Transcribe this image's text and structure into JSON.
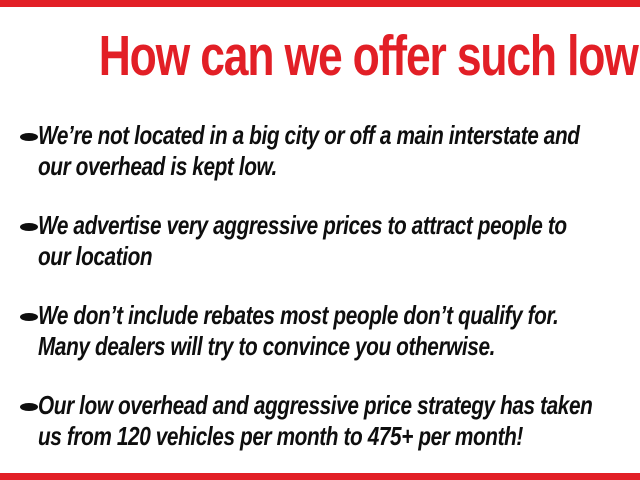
{
  "colors": {
    "accent_red": "#e21f26",
    "text_black": "#0e0e0e",
    "background": "#ffffff"
  },
  "heading": {
    "text": "How can we offer such low prices?"
  },
  "bullets": {
    "marker": "•",
    "items": [
      {
        "lines": [
          "We’re not located in a big city or off a main interstate and",
          "our overhead is kept low."
        ]
      },
      {
        "lines": [
          "We advertise very aggressive prices to attract people to",
          "our location"
        ]
      },
      {
        "lines": [
          "We don’t include rebates most people don’t qualify for.",
          "Many dealers will try to convince you otherwise."
        ]
      },
      {
        "lines": [
          "Our low overhead and aggressive price strategy has taken",
          "us from 120 vehicles per month to 475+ per month!"
        ]
      }
    ]
  }
}
